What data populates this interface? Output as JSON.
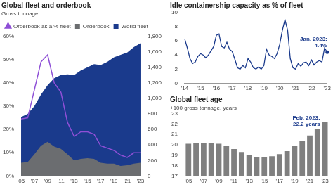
{
  "chart_data": [
    {
      "type": "line",
      "title": "Global fleet and orderbook",
      "subtitle": "Gross tonnage",
      "categories": [
        "'05",
        null,
        "'07",
        null,
        "'09",
        null,
        "'11",
        null,
        "'13",
        null,
        "'15",
        null,
        "'17",
        null,
        "'19",
        null,
        "'21",
        null,
        "'23"
      ],
      "series": [
        {
          "name": "Orderbook as a % fleet",
          "type": "line",
          "color": "#8e4fd6",
          "marker": "triangle",
          "values": [
            24.5,
            25,
            37,
            49,
            52,
            40,
            36,
            23,
            17,
            19,
            19,
            18,
            13,
            12,
            11,
            9,
            8,
            10,
            10
          ]
        },
        {
          "name": "World fleet",
          "type": "area",
          "color": "#1a3a8c",
          "axis": "y2",
          "values": [
            760,
            800,
            900,
            1050,
            1170,
            1260,
            1300,
            1310,
            1300,
            1360,
            1400,
            1440,
            1430,
            1470,
            1530,
            1560,
            1590,
            1660,
            1710
          ]
        },
        {
          "name": "Orderbook",
          "type": "area",
          "color": "#6b6d70",
          "axis": "y2",
          "values": [
            170,
            180,
            280,
            390,
            440,
            380,
            350,
            280,
            200,
            220,
            230,
            220,
            170,
            160,
            160,
            130,
            140,
            160,
            170
          ]
        }
      ],
      "ylim": [
        0,
        60
      ],
      "yticks": [
        {
          "value": 0,
          "label": "0%"
        },
        {
          "value": 10,
          "label": "10%"
        },
        {
          "value": 20,
          "label": "20%"
        },
        {
          "value": 30,
          "label": "30%"
        },
        {
          "value": 40,
          "label": "40%"
        },
        {
          "value": 50,
          "label": "50%"
        },
        {
          "value": 60,
          "label": "60%"
        }
      ],
      "y2lim": [
        0,
        1800
      ],
      "y2ticks": [
        0,
        200,
        400,
        600,
        800,
        {
          "value": 1000,
          "label": "1,000"
        },
        {
          "value": 1200,
          "label": "1,200"
        },
        {
          "value": 1400,
          "label": "1,400"
        },
        {
          "value": 1600,
          "label": "1,600"
        },
        {
          "value": 1800,
          "label": "1,800"
        }
      ],
      "grid": false,
      "legend": "top"
    },
    {
      "type": "line",
      "title": "Idle containership capacity as % of fleet",
      "categories": [
        "'14",
        null,
        null,
        null,
        null,
        null,
        "'15",
        null,
        null,
        null,
        null,
        null,
        "'16",
        null,
        null,
        null,
        null,
        null,
        "'17",
        null,
        null,
        null,
        null,
        null,
        "'18",
        null,
        null,
        null,
        null,
        null,
        "'19",
        null,
        null,
        null,
        null,
        null,
        "'20",
        null,
        null,
        null,
        null,
        null,
        "'21",
        null,
        null,
        null,
        null,
        null,
        "'22",
        null,
        null,
        null,
        null,
        null,
        "'23"
      ],
      "values": [
        6.3,
        5.0,
        3.5,
        2.8,
        3.0,
        3.8,
        4.2,
        4.0,
        3.6,
        4.0,
        4.6,
        5.2,
        6.8,
        7.0,
        5.2,
        5.0,
        5.8,
        4.8,
        4.5,
        3.4,
        2.2,
        2.0,
        2.5,
        2.2,
        3.5,
        3.0,
        2.2,
        2.0,
        2.3,
        2.0,
        2.5,
        4.8,
        4.0,
        3.8,
        3.5,
        4.2,
        5.5,
        7.5,
        9.0,
        7.5,
        3.5,
        2.2,
        2.0,
        2.8,
        2.4,
        2.9,
        3.0,
        2.5,
        3.3,
        2.6,
        3.0,
        3.2,
        3.0,
        5.0,
        4.4
      ],
      "color": "#1a3a8c",
      "ylim": [
        0,
        10
      ],
      "yticks": [
        0,
        2,
        4,
        6,
        8,
        10
      ],
      "grid": false,
      "annotations": [
        {
          "text": [
            "Jan. 2023:",
            "4.4%"
          ],
          "x": "'23",
          "y": 4.4
        }
      ]
    },
    {
      "type": "bar",
      "title": "Global fleet age",
      "subtitle": "+100 gross tonnage, years",
      "categories": [
        "'05",
        null,
        "'07",
        null,
        "'09",
        null,
        "'11",
        null,
        "'13",
        null,
        "'15",
        null,
        "'17",
        null,
        "'19",
        null,
        "'21",
        null,
        "'23"
      ],
      "values": [
        20.1,
        20.2,
        20.2,
        20.2,
        20.1,
        19.9,
        19.6,
        19.3,
        19.0,
        18.8,
        18.8,
        18.9,
        19.1,
        19.4,
        19.9,
        20.4,
        20.9,
        21.5,
        22.2
      ],
      "color": "#7f7f7f",
      "ylim": [
        17,
        23
      ],
      "yticks": [
        17,
        18,
        19,
        20,
        21,
        22,
        23
      ],
      "grid": false,
      "annotations": [
        {
          "text": [
            "Feb. 2023:",
            "22.2 years"
          ],
          "x": "'23",
          "y": 22.2
        }
      ]
    }
  ]
}
